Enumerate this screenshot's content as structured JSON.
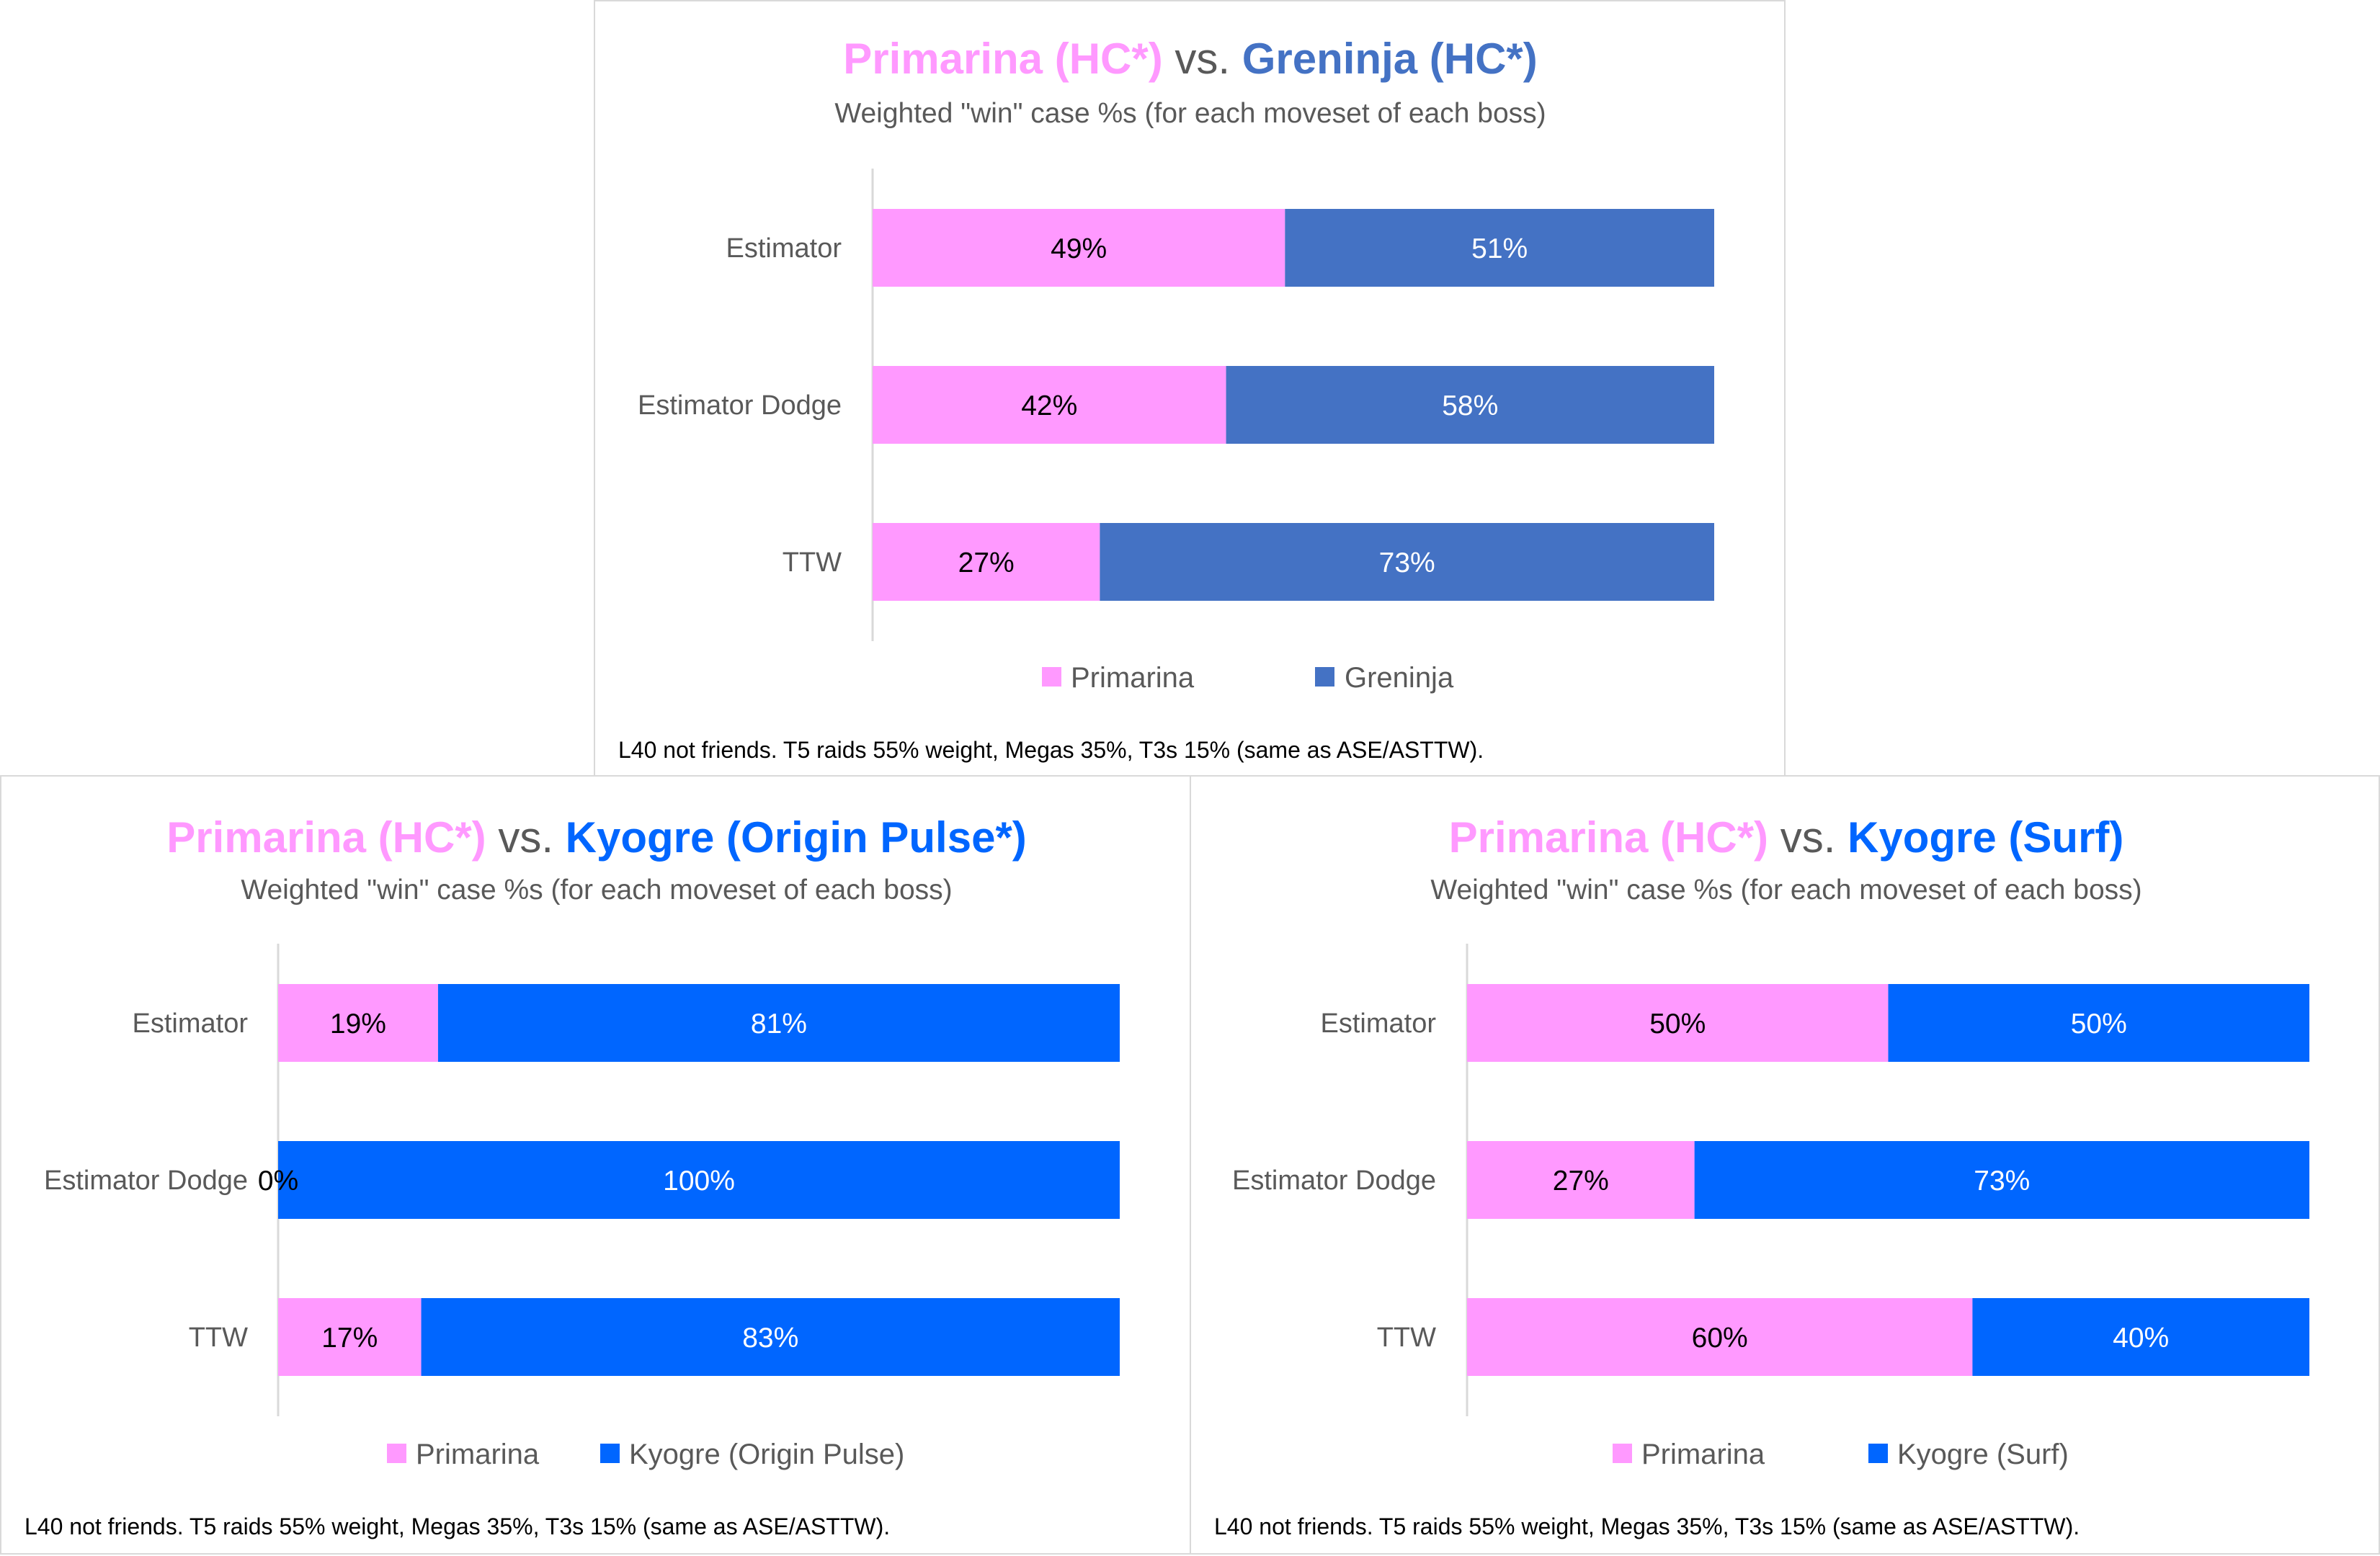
{
  "chart_data": [
    {
      "type": "bar",
      "orientation": "horizontal",
      "stacked": "100%",
      "title": {
        "part1": "Primarina (HC*)",
        "part2": " vs. ",
        "part3": "Greninja (HC*)"
      },
      "subtitle": "Weighted \"win\" case %s (for each moveset of each boss)",
      "categories": [
        "Estimator",
        "Estimator Dodge",
        "TTW"
      ],
      "series": [
        {
          "name": "Primarina",
          "values": [
            49,
            42,
            27
          ],
          "labels": [
            "49%",
            "42%",
            "27%"
          ],
          "color": "#ff99ff"
        },
        {
          "name": "Greninja",
          "values": [
            51,
            58,
            73
          ],
          "labels": [
            "51%",
            "58%",
            "73%"
          ],
          "color": "#4472c4"
        }
      ],
      "title_colors": {
        "part1": "#ff99ff",
        "part3": "#4472c4"
      },
      "legend": "bottom",
      "grid": false,
      "note": "L40 not friends. T5 raids 55% weight, Megas 35%, T3s 15% (same as ASE/ASTTW)."
    },
    {
      "type": "bar",
      "orientation": "horizontal",
      "stacked": "100%",
      "title": {
        "part1": "Primarina (HC*)",
        "part2": " vs. ",
        "part3": "Kyogre (Origin Pulse*)"
      },
      "subtitle": "Weighted \"win\" case %s (for each moveset of each boss)",
      "categories": [
        "Estimator",
        "Estimator Dodge",
        "TTW"
      ],
      "series": [
        {
          "name": "Primarina",
          "values": [
            19,
            0,
            17
          ],
          "labels": [
            "19%",
            "0%",
            "17%"
          ],
          "color": "#ff99ff"
        },
        {
          "name": "Kyogre (Origin Pulse)",
          "values": [
            81,
            100,
            83
          ],
          "labels": [
            "81%",
            "100%",
            "83%"
          ],
          "color": "#0066ff"
        }
      ],
      "title_colors": {
        "part1": "#ff99ff",
        "part3": "#0066ff"
      },
      "legend": "bottom",
      "grid": false,
      "note": "L40 not friends. T5 raids 55% weight, Megas 35%, T3s 15% (same as ASE/ASTTW)."
    },
    {
      "type": "bar",
      "orientation": "horizontal",
      "stacked": "100%",
      "title": {
        "part1": "Primarina (HC*)",
        "part2": " vs. ",
        "part3": "Kyogre (Surf)"
      },
      "subtitle": "Weighted \"win\" case %s (for each moveset of each boss)",
      "categories": [
        "Estimator",
        "Estimator Dodge",
        "TTW"
      ],
      "series": [
        {
          "name": "Primarina",
          "values": [
            50,
            27,
            60
          ],
          "labels": [
            "50%",
            "27%",
            "60%"
          ],
          "color": "#ff99ff"
        },
        {
          "name": "Kyogre (Surf)",
          "values": [
            50,
            73,
            40
          ],
          "labels": [
            "50%",
            "73%",
            "40%"
          ],
          "color": "#0066ff"
        }
      ],
      "title_colors": {
        "part1": "#ff99ff",
        "part3": "#0066ff"
      },
      "legend": "bottom",
      "grid": false,
      "note": "L40 not friends. T5 raids 55% weight, Megas 35%, T3s 15% (same as ASE/ASTTW)."
    }
  ]
}
